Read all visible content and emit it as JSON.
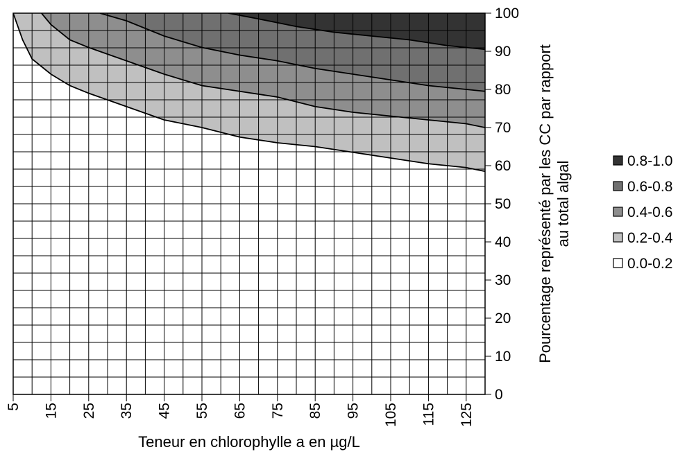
{
  "chart_data": {
    "type": "contour",
    "title": "",
    "xlabel": "Teneur en chlorophylle a en µg/L",
    "ylabel_line1": "Pourcentage représenté par les CC par rapport",
    "ylabel_line2": "au total algal",
    "xlim": [
      5,
      130
    ],
    "ylim": [
      0,
      100
    ],
    "x_tick_labels": [
      "5",
      "15",
      "25",
      "35",
      "45",
      "55",
      "65",
      "75",
      "85",
      "95",
      "105",
      "115",
      "125"
    ],
    "y_tick_labels": [
      "0",
      "10",
      "20",
      "30",
      "40",
      "50",
      "60",
      "70",
      "80",
      "90",
      "100"
    ],
    "y_axis_position": "right",
    "grid": true,
    "legend_position": "right",
    "levels": [
      {
        "name": "0.8-1.0",
        "color": "#333333"
      },
      {
        "name": "0.6-0.8",
        "color": "#707070"
      },
      {
        "name": "0.4-0.6",
        "color": "#8e8e8e"
      },
      {
        "name": "0.2-0.4",
        "color": "#c0c0c0"
      },
      {
        "name": "0.0-0.2",
        "color": "#ffffff"
      }
    ],
    "contours": [
      {
        "level": 0.2,
        "points": [
          [
            5,
            100
          ],
          [
            7.5,
            93
          ],
          [
            10,
            88
          ],
          [
            12.5,
            86
          ],
          [
            15,
            84
          ],
          [
            20,
            81
          ],
          [
            25,
            79
          ],
          [
            35,
            75.5
          ],
          [
            45,
            72
          ],
          [
            55,
            70
          ],
          [
            65,
            67.5
          ],
          [
            75,
            66
          ],
          [
            85,
            65
          ],
          [
            95,
            63.5
          ],
          [
            105,
            62
          ],
          [
            115,
            60.5
          ],
          [
            125,
            59.5
          ],
          [
            130,
            58.5
          ]
        ]
      },
      {
        "level": 0.4,
        "points": [
          [
            12.5,
            100
          ],
          [
            15,
            97
          ],
          [
            20,
            93
          ],
          [
            25,
            91
          ],
          [
            35,
            87.5
          ],
          [
            45,
            84
          ],
          [
            55,
            81
          ],
          [
            65,
            79.5
          ],
          [
            75,
            78
          ],
          [
            85,
            75.5
          ],
          [
            95,
            74
          ],
          [
            105,
            73
          ],
          [
            115,
            72
          ],
          [
            125,
            71
          ],
          [
            130,
            70
          ]
        ]
      },
      {
        "level": 0.6,
        "points": [
          [
            28,
            100
          ],
          [
            35,
            98
          ],
          [
            45,
            94
          ],
          [
            55,
            91
          ],
          [
            65,
            89
          ],
          [
            75,
            87.5
          ],
          [
            85,
            85.5
          ],
          [
            95,
            84
          ],
          [
            105,
            82.5
          ],
          [
            115,
            81
          ],
          [
            125,
            80
          ],
          [
            130,
            79.5
          ]
        ]
      },
      {
        "level": 0.8,
        "points": [
          [
            62,
            100
          ],
          [
            70,
            98.5
          ],
          [
            80,
            96.5
          ],
          [
            90,
            95
          ],
          [
            100,
            94
          ],
          [
            110,
            93
          ],
          [
            120,
            91.5
          ],
          [
            130,
            90.5
          ]
        ]
      }
    ]
  }
}
